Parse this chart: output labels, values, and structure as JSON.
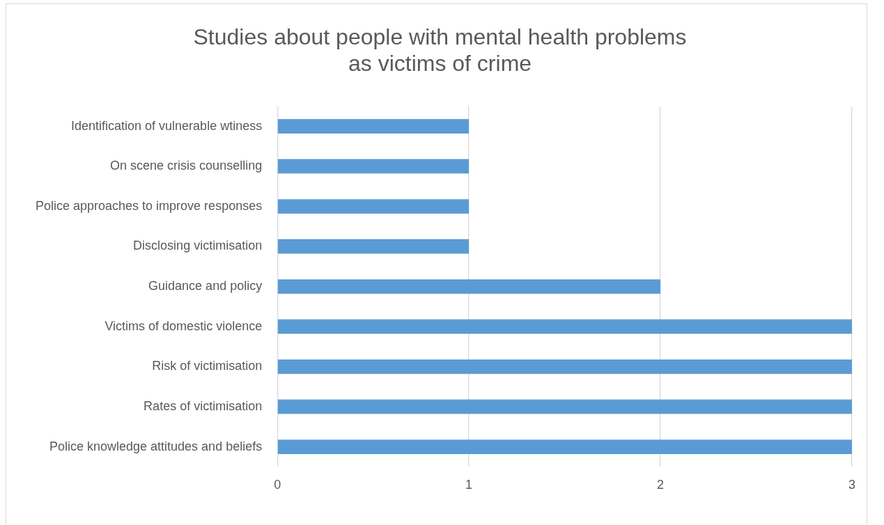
{
  "chart_data": {
    "type": "bar",
    "orientation": "horizontal",
    "title": "Studies about people with mental health problems\nas victims of crime",
    "categories": [
      "Identification of vulnerable wtiness",
      "On scene crisis counselling",
      "Police approaches to improve responses",
      "Disclosing victimisation",
      "Guidance and policy",
      "Victims of domestic violence",
      "Risk of victimisation",
      "Rates of victimisation",
      "Police knowledge attitudes and beliefs"
    ],
    "values": [
      1,
      1,
      1,
      1,
      2,
      3,
      3,
      3,
      3
    ],
    "color": "#5b9bd5",
    "xlim": [
      0,
      3
    ],
    "xticks": [
      0,
      1,
      2,
      3
    ],
    "grid": "x",
    "legend": false
  }
}
